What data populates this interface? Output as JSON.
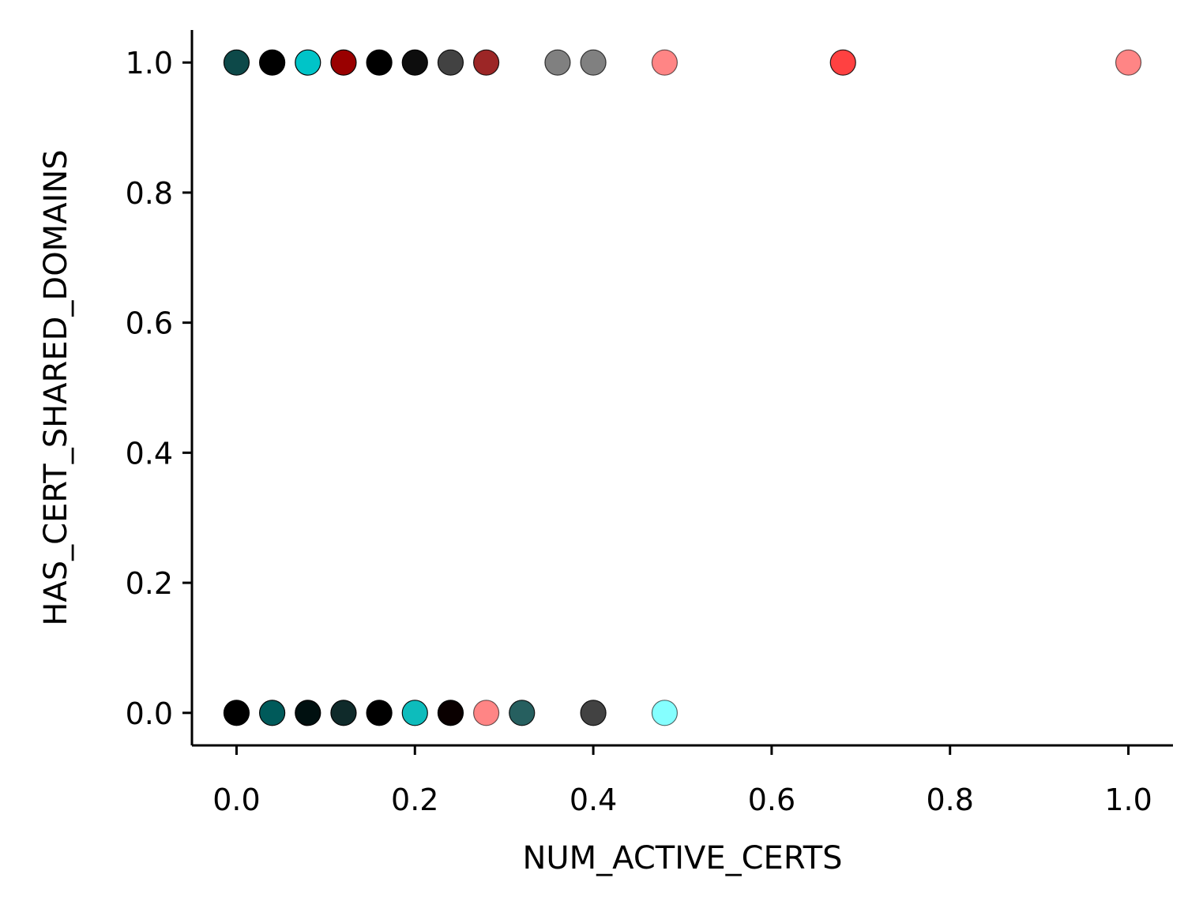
{
  "chart_data": {
    "type": "scatter",
    "xlabel": "NUM_ACTIVE_CERTS",
    "ylabel": "HAS_CERT_SHARED_DOMAINS",
    "xlim": [
      -0.05,
      1.05
    ],
    "ylim": [
      -0.05,
      1.05
    ],
    "xticks": [
      "0.0",
      "0.2",
      "0.4",
      "0.6",
      "0.8",
      "1.0"
    ],
    "yticks": [
      "0.0",
      "0.2",
      "0.4",
      "0.6",
      "0.8",
      "1.0"
    ],
    "grid": false,
    "points": [
      {
        "x": 0.0,
        "y": 1,
        "color": "#003f3f",
        "alpha": 0.95
      },
      {
        "x": 0.04,
        "y": 1,
        "color": "#000000",
        "alpha": 1.0
      },
      {
        "x": 0.08,
        "y": 1,
        "color": "#00c4c8",
        "alpha": 1.0
      },
      {
        "x": 0.12,
        "y": 1,
        "color": "#990000",
        "alpha": 1.0
      },
      {
        "x": 0.16,
        "y": 1,
        "color": "#000000",
        "alpha": 1.0
      },
      {
        "x": 0.2,
        "y": 1,
        "color": "#0d0d0d",
        "alpha": 1.0
      },
      {
        "x": 0.24,
        "y": 1,
        "color": "#2e2e2e",
        "alpha": 0.9
      },
      {
        "x": 0.28,
        "y": 1,
        "color": "#8b0000",
        "alpha": 0.85
      },
      {
        "x": 0.36,
        "y": 1,
        "color": "#555555",
        "alpha": 0.75
      },
      {
        "x": 0.4,
        "y": 1,
        "color": "#555555",
        "alpha": 0.75
      },
      {
        "x": 0.48,
        "y": 1,
        "color": "#ff3333",
        "alpha": 0.6
      },
      {
        "x": 0.68,
        "y": 1,
        "color": "#ff2020",
        "alpha": 0.85
      },
      {
        "x": 1.0,
        "y": 1,
        "color": "#ff3333",
        "alpha": 0.6
      },
      {
        "x": 0.0,
        "y": 0,
        "color": "#000000",
        "alpha": 1.0
      },
      {
        "x": 0.04,
        "y": 0,
        "color": "#005a5a",
        "alpha": 1.0
      },
      {
        "x": 0.08,
        "y": 0,
        "color": "#001010",
        "alpha": 1.0
      },
      {
        "x": 0.12,
        "y": 0,
        "color": "#0f2a2a",
        "alpha": 1.0
      },
      {
        "x": 0.16,
        "y": 0,
        "color": "#000000",
        "alpha": 1.0
      },
      {
        "x": 0.2,
        "y": 0,
        "color": "#00b8b8",
        "alpha": 0.95
      },
      {
        "x": 0.24,
        "y": 0,
        "color": "#0a0000",
        "alpha": 1.0
      },
      {
        "x": 0.28,
        "y": 0,
        "color": "#ff3333",
        "alpha": 0.6
      },
      {
        "x": 0.32,
        "y": 0,
        "color": "#0e4e4e",
        "alpha": 0.9
      },
      {
        "x": 0.4,
        "y": 0,
        "color": "#2e2e2e",
        "alpha": 0.9
      },
      {
        "x": 0.48,
        "y": 0,
        "color": "#33ffff",
        "alpha": 0.6
      }
    ]
  }
}
